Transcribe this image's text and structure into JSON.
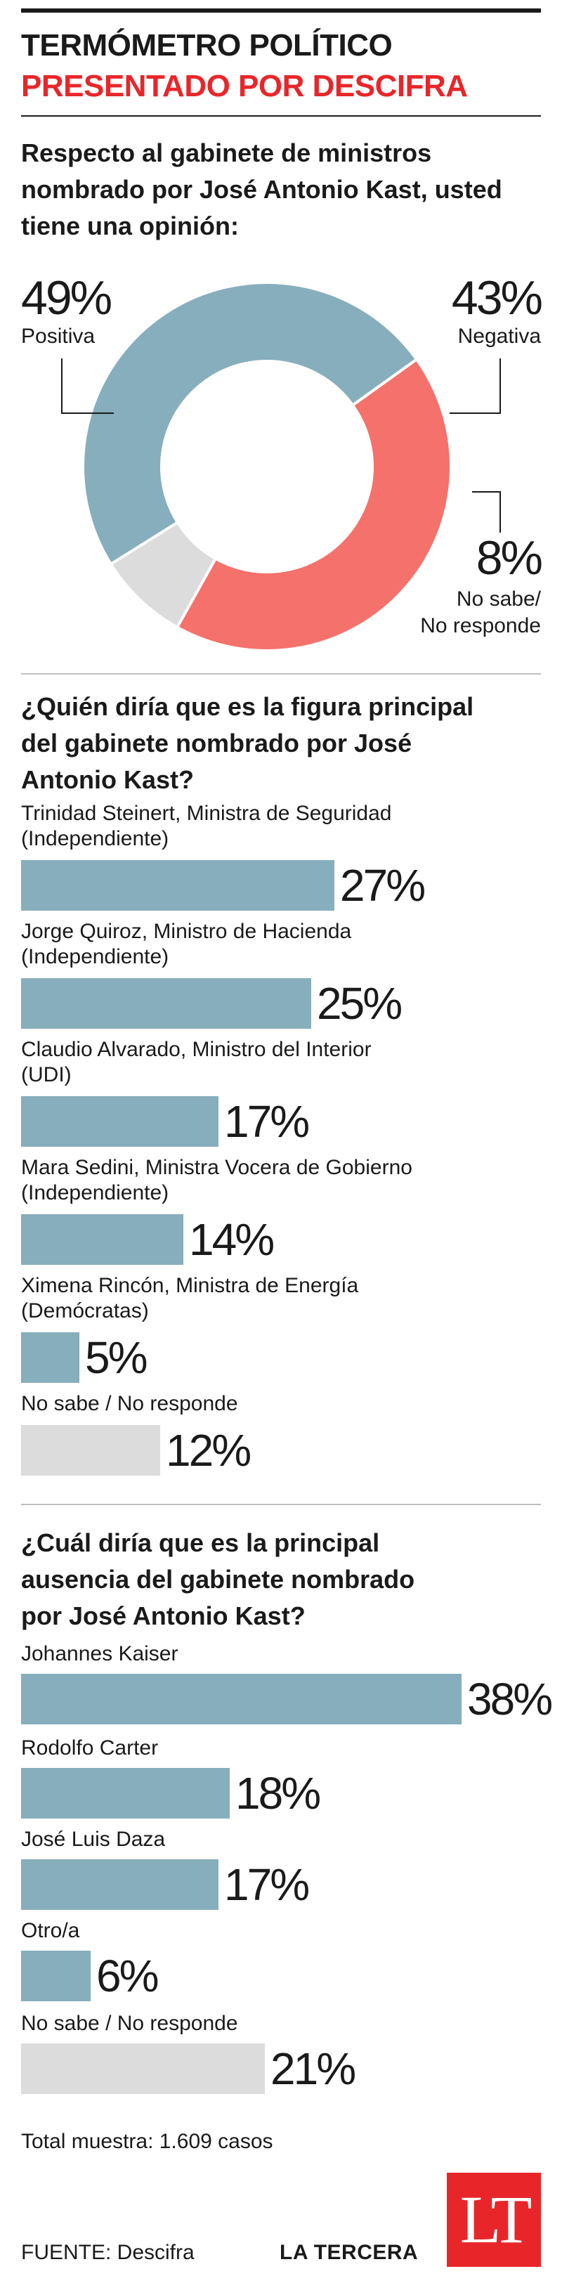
{
  "header": {
    "line1": "TERMÓMETRO POLÍTICO",
    "line2": "PRESENTADO POR DESCIFRA"
  },
  "colors": {
    "accent": "#e8262a",
    "positive": "#87aebc",
    "negative": "#f5716b",
    "no_answer": "#dcdcdc",
    "bar": "#87aebc"
  },
  "chart_data": [
    {
      "type": "pie",
      "variant": "donut",
      "title": "Respecto al gabinete de ministros\nnombrado por José Antonio Kast, usted\ntiene una opinión:",
      "slices": [
        {
          "label": "Positiva",
          "value": 49,
          "pct_text": "49%"
        },
        {
          "label": "Negativa",
          "value": 43,
          "pct_text": "43%"
        },
        {
          "label": "No sabe/\nNo responde",
          "value": 8,
          "pct_text": "8%"
        }
      ]
    },
    {
      "type": "bar",
      "orientation": "horizontal",
      "title": "¿Quién diría que es la figura principal\ndel gabinete nombrado por José\nAntonio Kast?",
      "categories": [
        "Trinidad Steinert, Ministra de Seguridad\n(Independiente)",
        "Jorge Quiroz, Ministro de Hacienda\n(Independiente)",
        "Claudio Alvarado, Ministro del Interior\n(UDI)",
        "Mara Sedini, Ministra Vocera de Gobierno\n(Independiente)",
        "Ximena Rincón, Ministra de Energía\n(Demócratas)",
        "No sabe / No responde"
      ],
      "values": [
        27,
        25,
        17,
        14,
        5,
        12
      ],
      "value_labels": [
        "27%",
        "25%",
        "17%",
        "14%",
        "5%",
        "12%"
      ]
    },
    {
      "type": "bar",
      "orientation": "horizontal",
      "title": "¿Cuál diría que es la principal\nausencia del gabinete nombrado\npor José Antonio Kast?",
      "categories": [
        "Johannes Kaiser",
        "Rodolfo Carter",
        "José Luis Daza",
        "Otro/a",
        "No sabe / No responde"
      ],
      "values": [
        38,
        18,
        17,
        6,
        21
      ],
      "value_labels": [
        "38%",
        "18%",
        "17%",
        "6%",
        "21%"
      ]
    }
  ],
  "footer": {
    "sample": "Total muestra: 1.609 casos",
    "source": "FUENTE: Descifra",
    "brand": "LA TERCERA",
    "logo_text": "LT"
  }
}
